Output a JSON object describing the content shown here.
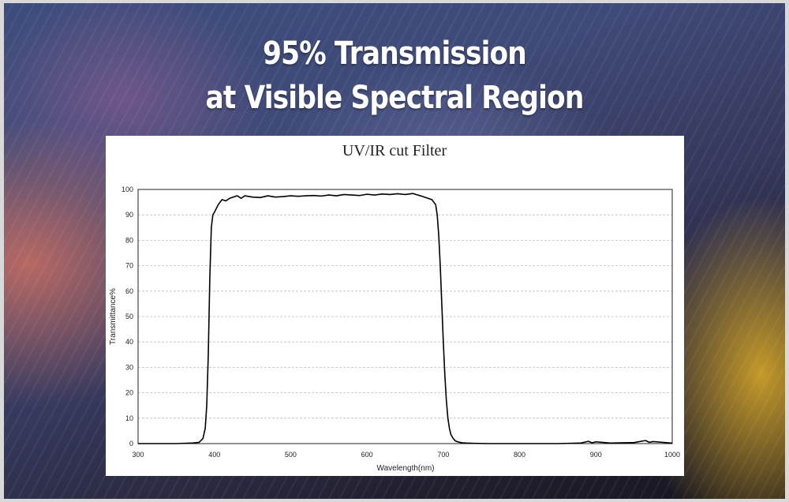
{
  "headline": {
    "line1": "95% Transmission",
    "line2": "at Visible Spectral Region"
  },
  "chart_data": {
    "type": "line",
    "title": "UV/IR cut  Filter",
    "xlabel": "Wavelength(nm)",
    "ylabel": "Transmittance%",
    "xlim": [
      300,
      1000
    ],
    "ylim": [
      0,
      100
    ],
    "xticks": [
      "300",
      "400",
      "500",
      "600",
      "700",
      "800",
      "900",
      "1000"
    ],
    "yticks": [
      "0",
      "10",
      "20",
      "30",
      "40",
      "50",
      "60",
      "70",
      "80",
      "90",
      "100"
    ],
    "grid": "horizontal-dashed",
    "legend": "none",
    "line_color": "#000000",
    "series": [
      {
        "x": [
          300,
          350,
          370,
          380,
          385,
          388,
          390,
          392,
          394,
          396,
          398,
          400,
          405,
          410,
          415,
          420,
          425,
          430,
          435,
          440,
          450,
          460,
          470,
          480,
          490,
          500,
          510,
          520,
          530,
          540,
          550,
          560,
          570,
          580,
          590,
          600,
          610,
          620,
          630,
          640,
          650,
          660,
          670,
          680,
          685,
          690,
          692,
          694,
          696,
          698,
          700,
          702,
          704,
          706,
          708,
          710,
          713,
          716,
          720,
          725,
          730,
          740,
          760,
          800,
          850,
          880,
          890,
          895,
          900,
          920,
          950,
          965,
          970,
          975,
          1000
        ],
        "y": [
          0,
          0,
          0.2,
          0.5,
          2,
          6,
          15,
          35,
          65,
          85,
          90,
          91,
          94,
          96,
          95.5,
          96.5,
          97,
          97.5,
          96.5,
          97.5,
          97,
          96.8,
          97.5,
          97,
          97.2,
          97.5,
          97.3,
          97.5,
          97.6,
          97.4,
          97.8,
          97.5,
          98,
          97.8,
          97.6,
          98.1,
          97.8,
          98.2,
          98,
          98.3,
          98,
          98.4,
          97.5,
          96.5,
          96,
          94,
          90,
          82,
          70,
          55,
          40,
          27,
          17,
          10,
          6,
          3.5,
          2,
          1,
          0.6,
          0.3,
          0.2,
          0.1,
          0,
          0,
          0,
          0.2,
          0.9,
          0.3,
          0.7,
          0.2,
          0.4,
          1.2,
          0.5,
          0.8,
          0.2
        ]
      }
    ]
  }
}
